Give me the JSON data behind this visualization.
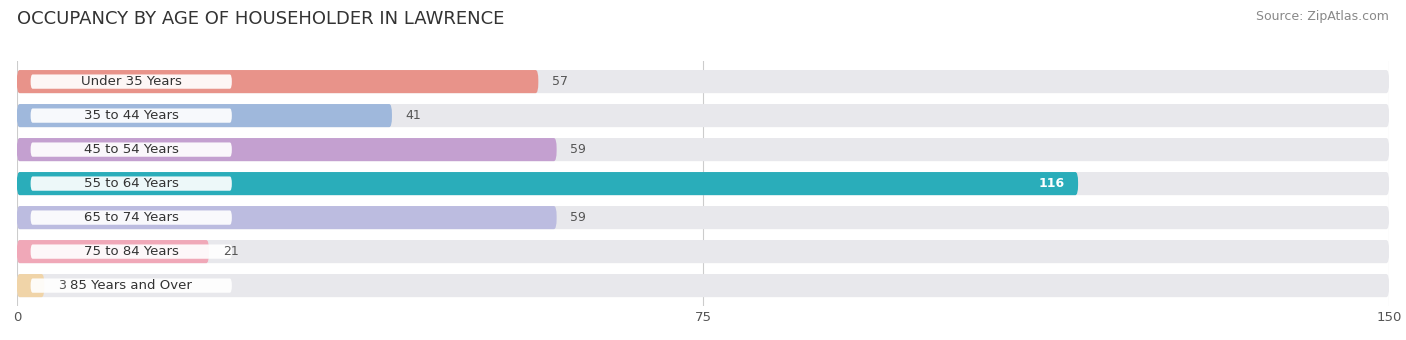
{
  "title": "OCCUPANCY BY AGE OF HOUSEHOLDER IN LAWRENCE",
  "source": "Source: ZipAtlas.com",
  "categories": [
    "Under 35 Years",
    "35 to 44 Years",
    "45 to 54 Years",
    "55 to 64 Years",
    "65 to 74 Years",
    "75 to 84 Years",
    "85 Years and Over"
  ],
  "values": [
    57,
    41,
    59,
    116,
    59,
    21,
    3
  ],
  "bar_colors": [
    "#E8938A",
    "#9FB8DC",
    "#C4A0D0",
    "#2AADBA",
    "#BCBCE0",
    "#F0A8B8",
    "#F0D4A8"
  ],
  "bar_bg_color": "#E8E8EC",
  "bg_color": "#FFFFFF",
  "xlim": [
    0,
    150
  ],
  "xticks": [
    0,
    75,
    150
  ],
  "title_fontsize": 13,
  "source_fontsize": 9,
  "label_fontsize": 9.5,
  "value_fontsize": 9,
  "bar_height": 0.68,
  "background_color": "#FFFFFF"
}
